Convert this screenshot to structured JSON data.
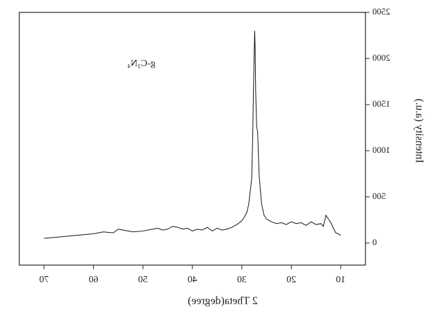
{
  "chart_data": {
    "type": "line",
    "annotation": "g-C₃N₄",
    "x_label": "2 Theta(degree)",
    "y_label": "Intensity (a.u.)",
    "xlim": [
      5,
      75
    ],
    "xticks": [
      10,
      20,
      30,
      40,
      50,
      60,
      70
    ],
    "ylim": [
      -240,
      2500
    ],
    "yticks": [
      0,
      500,
      1000,
      1500,
      2000,
      2500
    ],
    "mirrored": true,
    "series": [
      {
        "color": "#111111",
        "x": [
          10,
          10.5,
          11,
          11.5,
          12,
          12.5,
          13,
          13.5,
          14,
          15,
          16,
          17,
          18,
          19,
          20,
          21,
          22,
          23,
          24,
          25,
          25.5,
          26,
          26.5,
          26.8,
          27.0,
          27.2,
          27.3,
          27.4,
          27.5,
          27.6,
          27.8,
          28,
          28.3,
          28.6,
          29,
          29.5,
          30,
          31,
          32,
          33,
          34,
          35,
          36,
          37,
          38,
          39,
          40,
          41,
          42,
          43,
          44,
          45,
          46,
          47,
          48,
          50,
          52,
          54,
          55,
          56,
          58,
          60,
          62,
          64,
          66,
          68,
          70
        ],
        "values": [
          80,
          100,
          110,
          160,
          220,
          260,
          300,
          180,
          210,
          200,
          230,
          190,
          220,
          210,
          230,
          200,
          220,
          210,
          230,
          260,
          300,
          420,
          730,
          1200,
          1260,
          1650,
          2100,
          2300,
          2050,
          1800,
          1150,
          700,
          560,
          420,
          330,
          280,
          240,
          200,
          170,
          150,
          140,
          160,
          130,
          170,
          140,
          150,
          130,
          160,
          150,
          170,
          180,
          150,
          140,
          160,
          150,
          130,
          120,
          140,
          150,
          110,
          120,
          100,
          90,
          80,
          70,
          60,
          50
        ]
      }
    ]
  }
}
